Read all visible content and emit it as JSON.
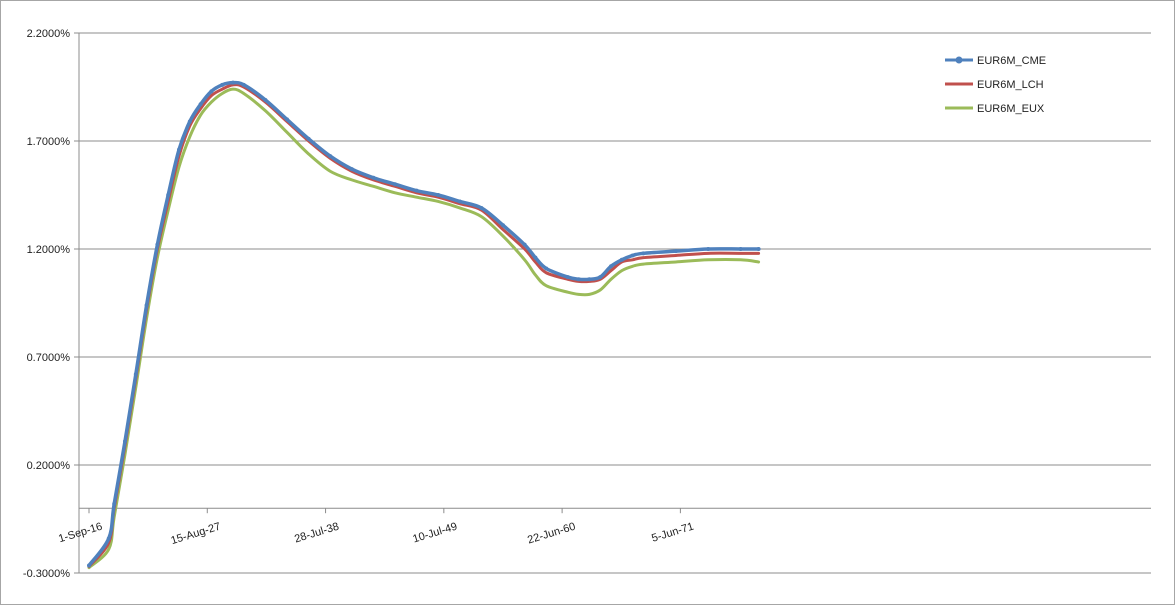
{
  "chart_data": {
    "type": "line",
    "title": "",
    "xlabel": "",
    "ylabel": "",
    "x_range": [
      "1-Sep-16",
      "1-Sep-66"
    ],
    "ylim": [
      -0.003,
      0.022
    ],
    "y_ticks": [
      -0.003,
      0.002,
      0.007,
      0.012,
      0.017,
      0.022
    ],
    "y_tick_labels": [
      "-0.3000%",
      "0.2000%",
      "0.7000%",
      "1.2000%",
      "1.7000%",
      "2.2000%"
    ],
    "x_ticks": [
      "1-Sep-16",
      "15-Aug-27",
      "28-Jul-38",
      "10-Jul-49",
      "22-Jun-60",
      "5-Jun-71"
    ],
    "x_tick_labels": [
      "1-Sep-16",
      "15-Aug-27",
      "28-Jul-38",
      "10-Jul-49",
      "22-Jun-60",
      "5-Jun-71"
    ],
    "grid": "horizontal",
    "legend_position": "top-right",
    "x": [
      "1-Sep-16",
      "1-Jul-18",
      "1-Jan-19",
      "1-Jan-20",
      "1-Jan-21",
      "1-Jan-22",
      "1-Jan-23",
      "1-Jan-24",
      "1-Jan-25",
      "1-Jan-26",
      "1-Jan-27",
      "1-Jan-28",
      "1-Jan-29",
      "1-Jan-30",
      "1-Jan-31",
      "1-Jan-33",
      "1-Jan-35",
      "1-Jan-37",
      "1-Jan-39",
      "1-Jan-41",
      "1-Jan-43",
      "1-Jan-45",
      "1-Jan-47",
      "1-Jan-49",
      "1-Jan-51",
      "1-Jan-53",
      "1-Jan-55",
      "1-Jan-57",
      "1-Jan-58",
      "1-Jan-59",
      "1-Jan-61",
      "1-Jan-62",
      "1-Jan-63",
      "1-Jan-64",
      "1-Jan-65",
      "1-Jan-66",
      "1-Jan-67",
      "1-Jan-68",
      "1-Jan-71",
      "1-Jan-74",
      "1-Jan-77",
      "1-Sep-78"
    ],
    "series": [
      {
        "name": "EUR6M_CME",
        "color": "#4f81bd",
        "marker": "circle",
        "values": [
          -0.00265,
          -0.0014,
          0.0002,
          0.0031,
          0.0062,
          0.0094,
          0.0122,
          0.0145,
          0.0166,
          0.0179,
          0.0187,
          0.0193,
          0.0196,
          0.0197,
          0.0196,
          0.0189,
          0.018,
          0.0171,
          0.0163,
          0.0157,
          0.0153,
          0.015,
          0.0147,
          0.0145,
          0.0142,
          0.0139,
          0.0131,
          0.0122,
          0.0116,
          0.0111,
          0.0107,
          0.0106,
          0.0106,
          0.0107,
          0.0112,
          0.0115,
          0.0117,
          0.0118,
          0.0119,
          0.012,
          0.012,
          0.012
        ]
      },
      {
        "name": "EUR6M_LCH",
        "color": "#c0504d",
        "marker": "none",
        "values": [
          -0.0027,
          -0.0016,
          0.0,
          0.0029,
          0.006,
          0.0092,
          0.012,
          0.0142,
          0.0163,
          0.0177,
          0.0185,
          0.0191,
          0.0194,
          0.0196,
          0.0195,
          0.0188,
          0.0179,
          0.017,
          0.0162,
          0.0156,
          0.0152,
          0.0149,
          0.0146,
          0.0144,
          0.0141,
          0.0138,
          0.0129,
          0.012,
          0.0114,
          0.0109,
          0.0106,
          0.0105,
          0.0105,
          0.0106,
          0.011,
          0.0114,
          0.0115,
          0.0116,
          0.0117,
          0.0118,
          0.0118,
          0.0118
        ]
      },
      {
        "name": "EUR6M_EUX",
        "color": "#9bbb59",
        "marker": "none",
        "values": [
          -0.00275,
          -0.0019,
          -0.0004,
          0.0025,
          0.0056,
          0.0088,
          0.0116,
          0.0138,
          0.0158,
          0.0172,
          0.0182,
          0.0188,
          0.0192,
          0.0194,
          0.0192,
          0.0184,
          0.0174,
          0.0164,
          0.0156,
          0.0152,
          0.0149,
          0.0146,
          0.0144,
          0.0142,
          0.0139,
          0.0135,
          0.0126,
          0.0115,
          0.0108,
          0.0103,
          0.01,
          0.0099,
          0.0099,
          0.0101,
          0.0106,
          0.011,
          0.0112,
          0.0113,
          0.0114,
          0.0115,
          0.0115,
          0.0114
        ]
      }
    ]
  }
}
